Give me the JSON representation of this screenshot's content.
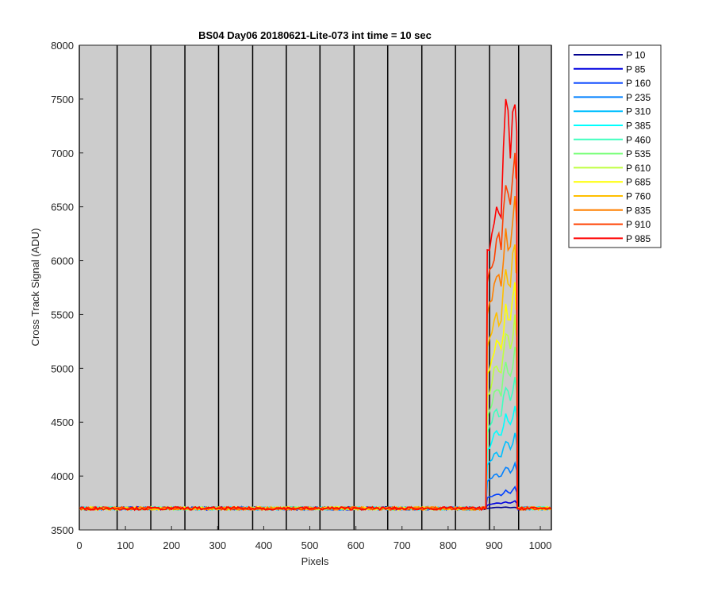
{
  "chart_data": {
    "type": "line",
    "title": "BS04 Day06 20180621-Lite-073 int time = 10 sec",
    "xlabel": "Pixels",
    "ylabel": "Cross Track Signal (ADU)",
    "xlim": [
      0,
      1024
    ],
    "ylim": [
      3500,
      8000
    ],
    "xticks": [
      0,
      100,
      200,
      300,
      400,
      500,
      600,
      700,
      800,
      900,
      1000
    ],
    "yticks": [
      3500,
      4000,
      4500,
      5000,
      5500,
      6000,
      6500,
      7000,
      7500,
      8000
    ],
    "grid": false,
    "vlines": [
      0,
      82,
      155,
      229,
      302,
      376,
      449,
      522,
      596,
      669,
      743,
      816,
      890,
      953,
      1024
    ],
    "baseline": 3700,
    "illuminated_region": [
      883,
      950
    ],
    "legend_position": "outside-right",
    "series": [
      {
        "name": "P 10",
        "color": "#00008f",
        "plateau_x": [
          885,
          895,
          905,
          915,
          925,
          935,
          945,
          949
        ],
        "plateau_y": [
          3700,
          3705,
          3710,
          3708,
          3712,
          3706,
          3710,
          3705
        ]
      },
      {
        "name": "P 85",
        "color": "#0000e0",
        "plateau_x": [
          885,
          895,
          905,
          915,
          925,
          935,
          945,
          949
        ],
        "plateau_y": [
          3730,
          3740,
          3750,
          3745,
          3760,
          3750,
          3770,
          3750
        ]
      },
      {
        "name": "P 160",
        "color": "#0040ff",
        "plateau_x": [
          885,
          895,
          905,
          915,
          925,
          935,
          945,
          949
        ],
        "plateau_y": [
          3800,
          3810,
          3830,
          3820,
          3870,
          3840,
          3900,
          3850
        ]
      },
      {
        "name": "P 235",
        "color": "#0080ff",
        "plateau_x": [
          885,
          895,
          905,
          915,
          925,
          935,
          945,
          949
        ],
        "plateau_y": [
          3950,
          3980,
          4020,
          4000,
          4080,
          4030,
          4120,
          4050
        ]
      },
      {
        "name": "P 310",
        "color": "#00bfff",
        "plateau_x": [
          885,
          895,
          905,
          915,
          925,
          935,
          945,
          949
        ],
        "plateau_y": [
          4100,
          4150,
          4220,
          4180,
          4320,
          4250,
          4400,
          4280
        ]
      },
      {
        "name": "P 385",
        "color": "#00ffff",
        "plateau_x": [
          885,
          895,
          905,
          915,
          925,
          935,
          945,
          949
        ],
        "plateau_y": [
          4250,
          4320,
          4420,
          4380,
          4580,
          4480,
          4650,
          4520
        ]
      },
      {
        "name": "P 460",
        "color": "#40ffbf",
        "plateau_x": [
          885,
          895,
          905,
          915,
          925,
          935,
          945,
          949
        ],
        "plateau_y": [
          4400,
          4500,
          4620,
          4560,
          4820,
          4700,
          4920,
          4760
        ]
      },
      {
        "name": "P 535",
        "color": "#80ff80",
        "plateau_x": [
          885,
          895,
          905,
          915,
          925,
          935,
          945,
          949
        ],
        "plateau_y": [
          4550,
          4660,
          4800,
          4740,
          5060,
          4930,
          5200,
          5000
        ]
      },
      {
        "name": "P 610",
        "color": "#bfff40",
        "plateau_x": [
          885,
          895,
          905,
          915,
          925,
          935,
          945,
          949
        ],
        "plateau_y": [
          4750,
          4860,
          5020,
          4960,
          5320,
          5180,
          5500,
          5280
        ]
      },
      {
        "name": "P 685",
        "color": "#ffff00",
        "plateau_x": [
          885,
          895,
          905,
          915,
          925,
          935,
          945,
          949
        ],
        "plateau_y": [
          4950,
          5080,
          5260,
          5180,
          5600,
          5450,
          5800,
          5550
        ]
      },
      {
        "name": "P 760",
        "color": "#ffbf00",
        "plateau_x": [
          885,
          895,
          905,
          915,
          925,
          935,
          945,
          949
        ],
        "plateau_y": [
          5200,
          5330,
          5520,
          5440,
          5920,
          5760,
          6150,
          5880
        ]
      },
      {
        "name": "P 835",
        "color": "#ff8000",
        "plateau_x": [
          885,
          895,
          905,
          915,
          925,
          935,
          945,
          949
        ],
        "plateau_y": [
          5500,
          5630,
          5850,
          5760,
          6300,
          6130,
          6600,
          6300
        ]
      },
      {
        "name": "P 910",
        "color": "#ff4000",
        "plateau_x": [
          885,
          895,
          905,
          915,
          925,
          935,
          945,
          949
        ],
        "plateau_y": [
          5800,
          5940,
          6200,
          6100,
          6700,
          6520,
          7000,
          6750
        ]
      },
      {
        "name": "P 985",
        "color": "#ff0000",
        "plateau_x": [
          885,
          895,
          905,
          915,
          925,
          935,
          945,
          949
        ],
        "plateau_y": [
          6100,
          6250,
          6500,
          6400,
          7500,
          6950,
          7450,
          7200
        ]
      }
    ]
  }
}
